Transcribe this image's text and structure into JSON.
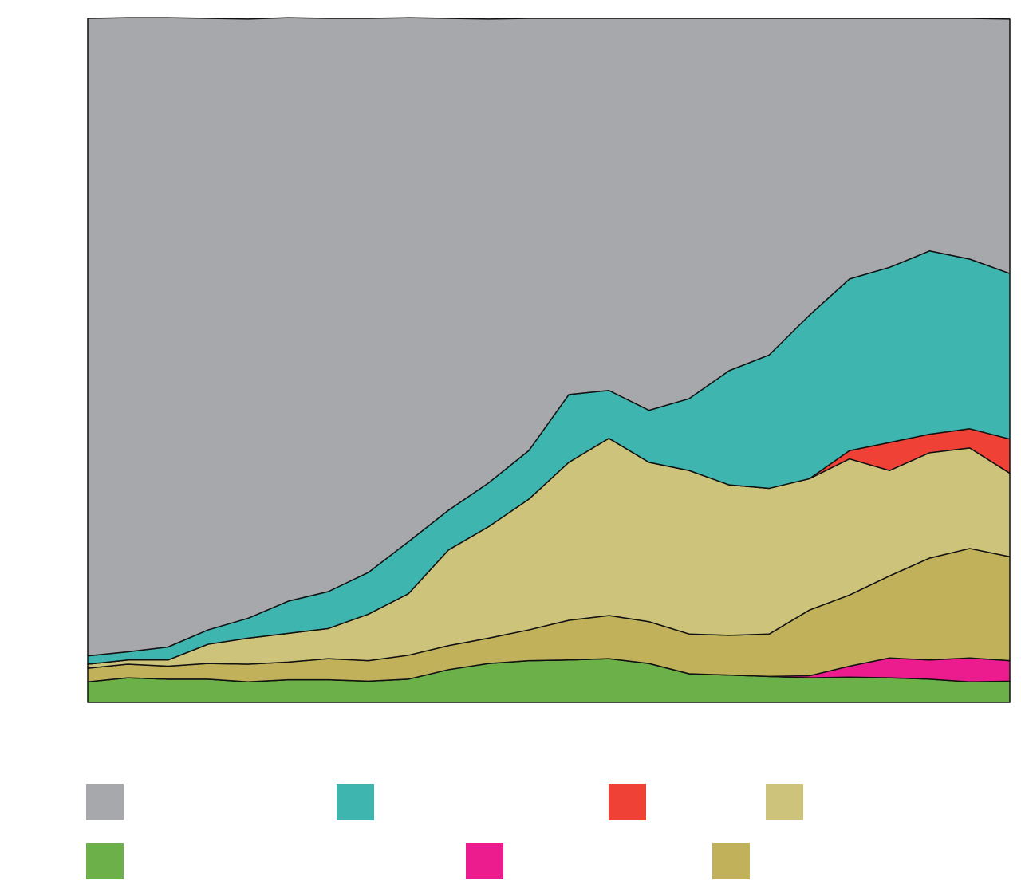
{
  "chart_data": {
    "type": "area",
    "stacked": true,
    "categories": [
      null,
      null,
      null,
      null,
      null,
      null,
      null,
      null,
      null,
      null,
      null,
      null,
      null,
      null,
      null,
      null,
      null,
      null,
      null,
      null,
      null,
      null,
      null,
      null
    ],
    "ylim": [
      0,
      100
    ],
    "series": [
      {
        "color": "#6cb04a",
        "values": [
          3.0,
          3.6,
          3.4,
          3.4,
          3.0,
          3.3,
          3.3,
          3.1,
          3.4,
          4.8,
          5.7,
          6.1,
          6.2,
          6.4,
          5.7,
          4.2,
          4.0,
          3.8,
          3.6,
          3.7,
          3.6,
          3.4,
          3.0,
          3.1
        ]
      },
      {
        "color": "#ec1c8f",
        "values": [
          0,
          0,
          0,
          0,
          0,
          0,
          0,
          0,
          0,
          0,
          0,
          0,
          0,
          0,
          0,
          0,
          0,
          0,
          0.3,
          1.6,
          2.9,
          2.8,
          3.5,
          3.0
        ]
      },
      {
        "color": "#c1b15a",
        "values": [
          2.0,
          2.0,
          1.9,
          2.3,
          2.6,
          2.6,
          3.1,
          3.0,
          3.5,
          3.5,
          3.7,
          4.5,
          5.8,
          6.3,
          6.1,
          5.8,
          5.8,
          6.2,
          9.6,
          10.4,
          12.0,
          14.9,
          16.0,
          15.2
        ]
      },
      {
        "color": "#cdc37b",
        "values": [
          0.6,
          0.6,
          0.9,
          2.8,
          3.8,
          4.2,
          4.4,
          6.8,
          9.0,
          14.0,
          16.3,
          19.1,
          23.1,
          25.9,
          23.3,
          23.9,
          22.0,
          21.3,
          19.2,
          19.9,
          15.4,
          15.4,
          14.7,
          12.2
        ]
      },
      {
        "color": "#ef4136",
        "values": [
          0,
          0,
          0,
          0,
          0,
          0,
          0,
          0,
          0,
          0,
          0,
          0,
          0,
          0,
          0,
          0,
          0,
          0,
          0,
          1.2,
          4.1,
          2.7,
          2.8,
          5.0
        ]
      },
      {
        "color": "#3fb5b0",
        "values": [
          1.2,
          1.2,
          1.9,
          2.1,
          2.9,
          4.7,
          5.4,
          6.1,
          7.6,
          5.8,
          6.4,
          7.1,
          9.9,
          7.0,
          7.6,
          10.5,
          16.7,
          19.5,
          23.9,
          25.1,
          25.6,
          26.8,
          24.8,
          24.2
        ]
      },
      {
        "color": "#a7a8ab",
        "values": [
          93.2,
          92.7,
          92.0,
          89.4,
          87.6,
          85.3,
          83.8,
          81.0,
          76.6,
          71.9,
          67.8,
          63.2,
          55.0,
          54.4,
          57.3,
          55.6,
          51.5,
          49.2,
          43.4,
          38.1,
          36.4,
          34.0,
          35.2,
          37.2
        ]
      }
    ]
  }
}
